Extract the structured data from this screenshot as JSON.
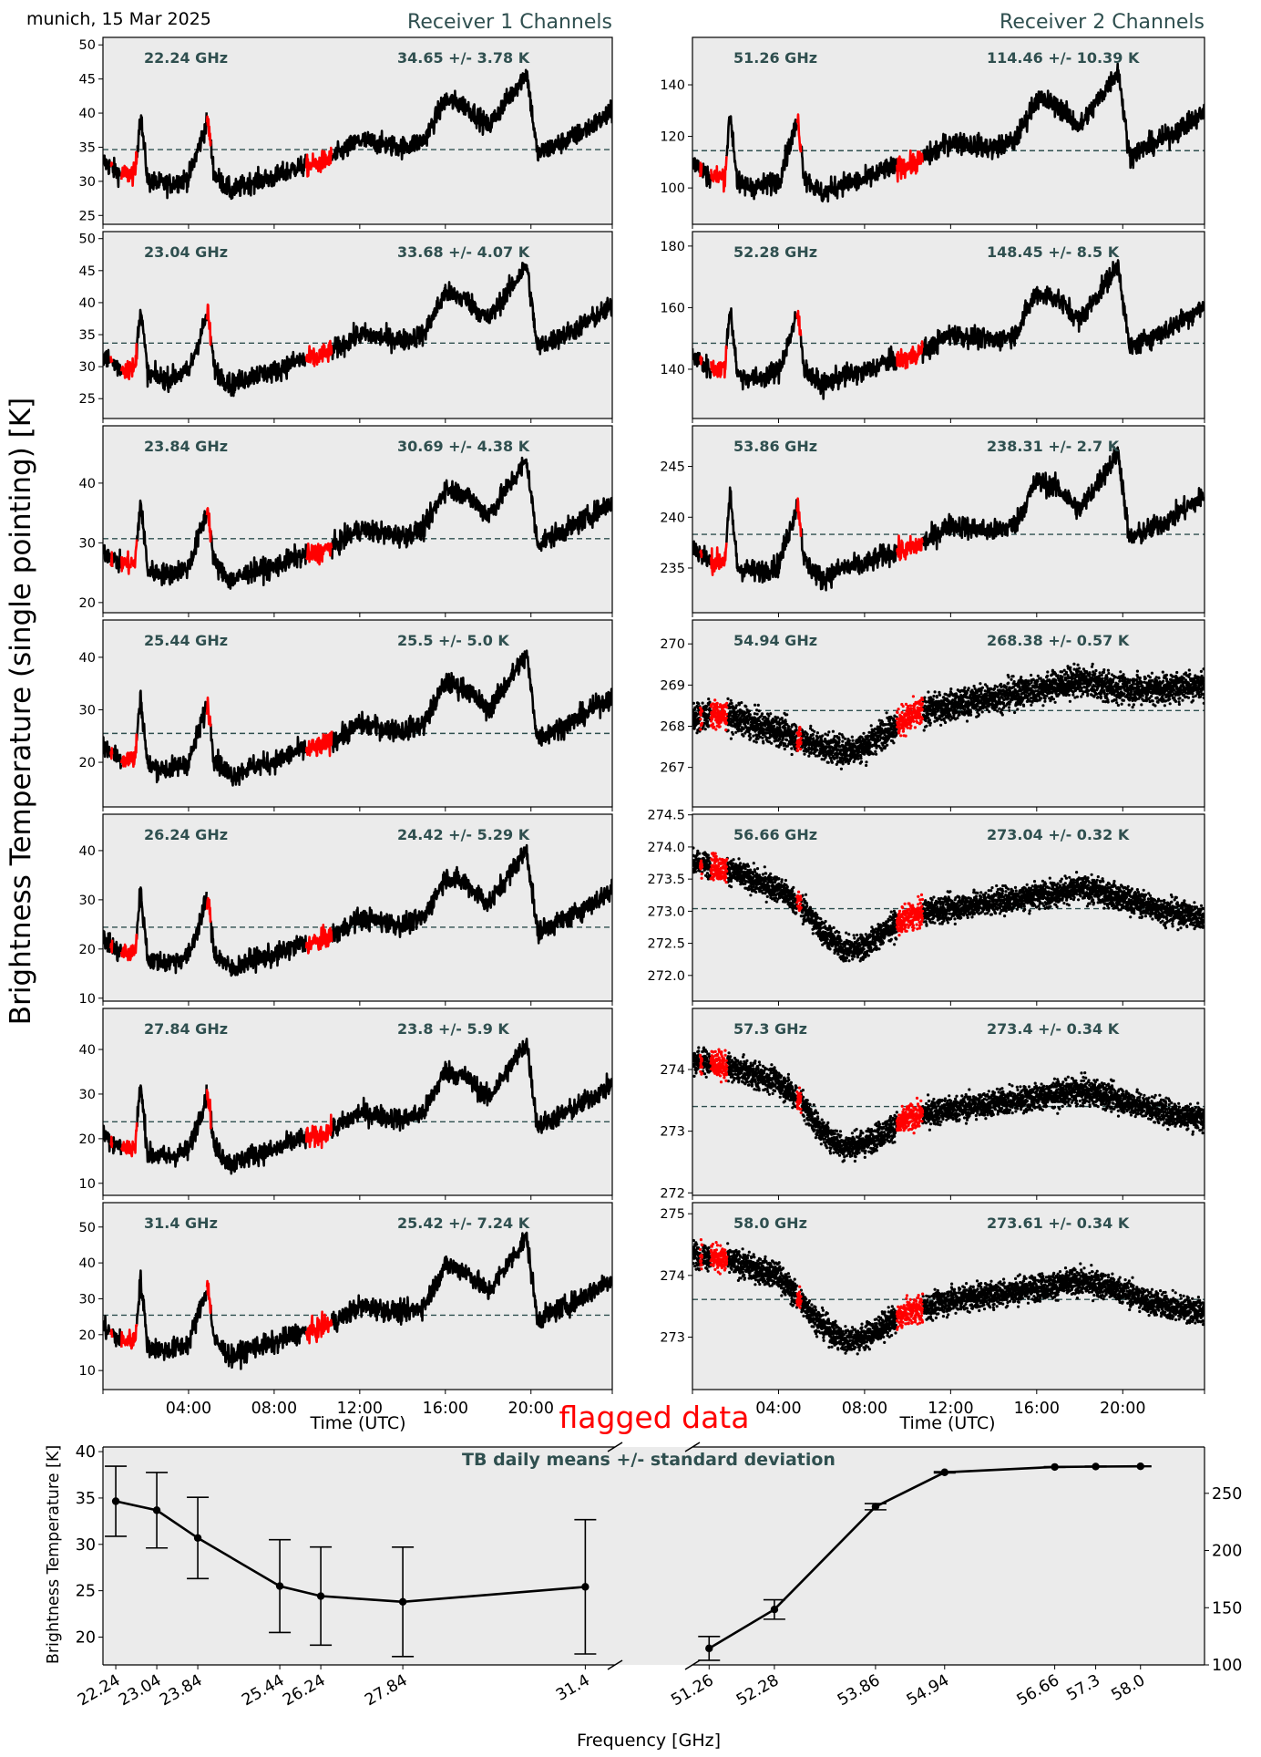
{
  "header": {
    "location_date": "munich, 15 Mar 2025",
    "receiver1_title": "Receiver 1 Channels",
    "receiver2_title": "Receiver 2 Channels",
    "ylabel": "Brightness Temperature (single pointing) [K]",
    "time_xlabel": "Time (UTC)",
    "flag_label": "flagged data"
  },
  "colors": {
    "panel_bg": "#ebebeb",
    "line": "#000000",
    "flagged": "#ff0000",
    "mean_line": "#2f4f4f",
    "label_text": "#2f4f4f"
  },
  "chart_data": [
    {
      "type": "line",
      "title": "Receiver 1 Channels",
      "xlabel": "Time (UTC)",
      "ylabel": "Brightness Temperature (single pointing) [K]",
      "x_unit": "hours UTC",
      "xlim": [
        0,
        23.8
      ],
      "x_ticks": [
        4,
        8,
        12,
        16,
        20
      ],
      "x_tick_labels": [
        "04:00",
        "08:00",
        "12:00",
        "16:00",
        "20:00"
      ],
      "flagged_intervals_hours": [
        [
          0.35,
          0.45
        ],
        [
          0.85,
          1.6
        ],
        [
          4.85,
          5.05
        ],
        [
          9.5,
          10.7
        ]
      ],
      "time_hours": [
        0,
        0.8,
        1.5,
        1.75,
        2.1,
        3,
        4,
        4.9,
        5.2,
        6,
        7,
        8,
        9,
        10,
        11,
        12,
        13,
        14,
        15,
        16,
        17,
        18,
        19.8,
        20.3,
        22,
        23.8
      ],
      "channels": [
        {
          "freq_label": "22.24 GHz",
          "stats_label": "34.65 +/- 3.78 K",
          "mean": 34.65,
          "std": 3.78,
          "ylim": [
            23.7,
            51.1
          ],
          "y_ticks": [
            25,
            30,
            35,
            40,
            45,
            50
          ],
          "values": [
            33,
            31,
            31,
            40,
            30,
            29.5,
            30.5,
            39,
            31,
            28.5,
            30,
            30.5,
            32,
            32.5,
            34,
            36,
            35.5,
            35,
            36,
            42,
            41,
            38,
            46,
            34,
            36.5,
            40
          ]
        },
        {
          "freq_label": "23.04 GHz",
          "stats_label": "33.68 +/- 4.07 K",
          "mean": 33.68,
          "std": 4.07,
          "ylim": [
            21.9,
            51.1
          ],
          "y_ticks": [
            25,
            30,
            35,
            40,
            45,
            50
          ],
          "values": [
            31.9,
            29.7,
            29.7,
            39.4,
            28.7,
            28.1,
            29.2,
            38.4,
            29.7,
            27.1,
            28.7,
            29.2,
            30.8,
            31.4,
            33.0,
            35.1,
            34.6,
            34.1,
            35.1,
            41.6,
            40.5,
            37.3,
            45.9,
            33.0,
            35.7,
            39.4
          ]
        },
        {
          "freq_label": "23.84 GHz",
          "stats_label": "30.69 +/- 4.38 K",
          "mean": 30.69,
          "std": 4.38,
          "ylim": [
            18.3,
            49.6
          ],
          "y_ticks": [
            20,
            30,
            40
          ],
          "values": [
            28.8,
            26.5,
            26.5,
            36.9,
            25.3,
            24.7,
            25.9,
            35.7,
            26.5,
            23.6,
            25.3,
            25.9,
            27.6,
            28.2,
            29.9,
            32.3,
            31.7,
            31.1,
            32.3,
            39.2,
            38.0,
            34.6,
            43.8,
            29.9,
            32.8,
            36.9
          ]
        },
        {
          "freq_label": "25.44 GHz",
          "stats_label": "25.5 +/- 5.0 K",
          "mean": 25.5,
          "std": 5.0,
          "ylim": [
            11.5,
            47.1
          ],
          "y_ticks": [
            20,
            30,
            40
          ],
          "values": [
            23.3,
            20.7,
            20.7,
            32.6,
            19.3,
            18.7,
            20.0,
            31.3,
            20.7,
            17.4,
            19.3,
            20.0,
            22.0,
            22.7,
            24.6,
            27.3,
            26.6,
            26.0,
            27.3,
            35.2,
            33.9,
            29.9,
            40.5,
            24.6,
            27.9,
            32.6
          ]
        },
        {
          "freq_label": "26.24 GHz",
          "stats_label": "24.42 +/- 5.29 K",
          "mean": 24.42,
          "std": 5.29,
          "ylim": [
            9.4,
            47.4
          ],
          "y_ticks": [
            10,
            20,
            30,
            40
          ],
          "values": [
            22.1,
            19.3,
            19.3,
            31.9,
            17.9,
            17.2,
            18.6,
            30.5,
            19.3,
            15.8,
            17.9,
            18.6,
            20.7,
            21.4,
            23.5,
            26.3,
            25.6,
            24.9,
            26.3,
            34.7,
            33.3,
            29.1,
            40.3,
            23.5,
            27.0,
            31.9
          ]
        },
        {
          "freq_label": "27.84 GHz",
          "stats_label": "23.8 +/- 5.9 K",
          "mean": 23.8,
          "std": 5.9,
          "ylim": [
            7.3,
            49.2
          ],
          "y_ticks": [
            10,
            20,
            30,
            40
          ],
          "values": [
            21.2,
            18.1,
            18.1,
            32.2,
            16.5,
            15.8,
            17.3,
            30.6,
            18.1,
            14.2,
            16.5,
            17.3,
            19.7,
            20.4,
            22.8,
            25.9,
            25.1,
            24.3,
            25.9,
            35.3,
            33.7,
            29.0,
            41.5,
            22.8,
            26.7,
            32.2
          ]
        },
        {
          "freq_label": "31.4 GHz",
          "stats_label": "25.42 +/- 7.24 K",
          "mean": 25.42,
          "std": 7.24,
          "ylim": [
            4.7,
            56.8
          ],
          "y_ticks": [
            10,
            20,
            30,
            40,
            50
          ],
          "values": [
            22.3,
            18.4,
            18.4,
            35.7,
            16.5,
            15.6,
            17.5,
            33.7,
            18.4,
            13.6,
            16.5,
            17.5,
            20.3,
            21.3,
            24.2,
            28.0,
            27.1,
            26.1,
            28.0,
            39.5,
            37.6,
            31.8,
            47.2,
            24.2,
            29.0,
            35.7
          ]
        }
      ]
    },
    {
      "type": "line",
      "title": "Receiver 2 Channels",
      "xlabel": "Time (UTC)",
      "x_unit": "hours UTC",
      "xlim": [
        0,
        23.8
      ],
      "x_ticks": [
        4,
        8,
        12,
        16,
        20
      ],
      "x_tick_labels": [
        "04:00",
        "08:00",
        "12:00",
        "16:00",
        "20:00"
      ],
      "flagged_intervals_hours": [
        [
          0.35,
          0.45
        ],
        [
          0.85,
          1.6
        ],
        [
          4.85,
          5.05
        ],
        [
          9.5,
          10.7
        ]
      ],
      "time_hours": [
        0,
        0.8,
        1.5,
        1.75,
        2.1,
        3,
        4,
        4.9,
        5.2,
        6,
        7,
        8,
        9,
        10,
        11,
        12,
        13,
        14,
        15,
        16,
        17,
        18,
        19.8,
        20.3,
        22,
        23.8
      ],
      "time_hours_scatter": [
        0,
        1,
        2,
        3,
        4,
        5,
        6,
        7,
        8,
        9,
        10,
        11,
        12,
        13,
        14,
        15,
        16,
        17,
        18,
        19,
        20,
        21,
        22,
        23,
        23.8
      ],
      "channels": [
        {
          "freq_label": "51.26 GHz",
          "stats_label": "114.46 +/- 10.39 K",
          "mean": 114.46,
          "std": 10.39,
          "ylim": [
            85.9,
            158.4
          ],
          "y_ticks": [
            100,
            120,
            140
          ],
          "style": "line",
          "values": [
            109.9,
            104.4,
            104.4,
            129.2,
            101.7,
            100.3,
            103.0,
            126.4,
            104.4,
            97.6,
            101.7,
            103.0,
            107.2,
            108.6,
            112.7,
            118.2,
            116.8,
            115.4,
            118.2,
            134.7,
            131.9,
            123.7,
            145.7,
            112.7,
            119.5,
            129.2
          ]
        },
        {
          "freq_label": "52.28 GHz",
          "stats_label": "148.45 +/- 8.5 K",
          "mean": 148.45,
          "std": 8.5,
          "ylim": [
            124.0,
            184.7
          ],
          "y_ticks": [
            140,
            160,
            180
          ],
          "style": "line",
          "values": [
            144.7,
            140.2,
            140.2,
            160.5,
            138.0,
            136.9,
            139.1,
            158.2,
            140.2,
            134.6,
            138.0,
            139.1,
            142.5,
            143.6,
            147.0,
            151.5,
            150.4,
            149.2,
            151.5,
            165.0,
            162.7,
            156.0,
            174.0,
            147.0,
            152.6,
            160.5
          ]
        },
        {
          "freq_label": "53.86 GHz",
          "stats_label": "238.31 +/- 2.7 K",
          "mean": 238.31,
          "std": 2.7,
          "ylim": [
            230.6,
            249.0
          ],
          "y_ticks": [
            235,
            240,
            245
          ],
          "style": "line",
          "values": [
            237.1,
            235.7,
            235.7,
            242.1,
            235.0,
            234.6,
            235.3,
            241.4,
            235.7,
            233.9,
            235.0,
            235.3,
            236.4,
            236.8,
            237.8,
            239.3,
            238.9,
            238.6,
            239.3,
            243.6,
            242.8,
            240.7,
            246.4,
            237.8,
            239.6,
            242.1
          ]
        },
        {
          "freq_label": "54.94 GHz",
          "stats_label": "268.38 +/- 0.57 K",
          "mean": 268.38,
          "std": 0.57,
          "ylim": [
            266.04,
            270.58
          ],
          "y_ticks": [
            267,
            268,
            269,
            270
          ],
          "style": "scatter",
          "values": [
            268.2,
            268.3,
            268.2,
            268.0,
            267.9,
            267.7,
            267.5,
            267.4,
            267.5,
            267.9,
            268.2,
            268.4,
            268.5,
            268.6,
            268.7,
            268.8,
            268.9,
            269.0,
            269.1,
            269.0,
            268.9,
            268.9,
            268.9,
            269.0,
            269.0
          ]
        },
        {
          "freq_label": "56.66 GHz",
          "stats_label": "273.04 +/- 0.32 K",
          "mean": 273.04,
          "std": 0.32,
          "ylim": [
            271.6,
            274.51
          ],
          "y_ticks": [
            272.0,
            272.5,
            273.0,
            273.5,
            274.0,
            274.5
          ],
          "y_tick_labels": [
            "272.0",
            "272.5",
            "273.0",
            "273.5",
            "274.0",
            "274.5"
          ],
          "style": "scatter",
          "values": [
            273.75,
            273.7,
            273.6,
            273.45,
            273.35,
            273.1,
            272.7,
            272.4,
            272.45,
            272.7,
            272.9,
            273.0,
            273.05,
            273.1,
            273.15,
            273.2,
            273.25,
            273.3,
            273.35,
            273.3,
            273.2,
            273.1,
            273.0,
            272.95,
            272.9
          ]
        },
        {
          "freq_label": "57.3 GHz",
          "stats_label": "273.4 +/- 0.34 K",
          "mean": 273.4,
          "std": 0.34,
          "ylim": [
            271.96,
            274.99
          ],
          "y_ticks": [
            272,
            273,
            274
          ],
          "style": "scatter",
          "values": [
            274.15,
            274.1,
            274.0,
            273.9,
            273.8,
            273.5,
            273.0,
            272.75,
            272.8,
            273.0,
            273.2,
            273.3,
            273.35,
            273.4,
            273.45,
            273.5,
            273.55,
            273.6,
            273.65,
            273.6,
            273.5,
            273.4,
            273.3,
            273.25,
            273.2
          ]
        },
        {
          "freq_label": "58.0 GHz",
          "stats_label": "273.61 +/- 0.34 K",
          "mean": 273.61,
          "std": 0.34,
          "ylim": [
            272.15,
            275.18
          ],
          "y_ticks": [
            273,
            274,
            275
          ],
          "style": "scatter",
          "values": [
            274.35,
            274.3,
            274.2,
            274.1,
            274.0,
            273.6,
            273.2,
            272.95,
            273.0,
            273.2,
            273.4,
            273.5,
            273.6,
            273.65,
            273.7,
            273.75,
            273.8,
            273.85,
            273.9,
            273.85,
            273.75,
            273.6,
            273.5,
            273.45,
            273.4
          ]
        }
      ]
    },
    {
      "type": "line",
      "title": "TB daily means +/- standard deviation",
      "xlabel": "Frequency [GHz]",
      "ylabel": "Brightness Temperature [K]",
      "broken_x_axis": true,
      "left": {
        "x": [
          22.24,
          23.04,
          23.84,
          25.44,
          26.24,
          27.84,
          31.4
        ],
        "x_tick_labels": [
          "22.24",
          "23.04",
          "23.84",
          "25.44",
          "26.24",
          "27.84",
          "31.4"
        ],
        "y": [
          34.65,
          33.68,
          30.69,
          25.5,
          24.42,
          23.8,
          25.42
        ],
        "yerr": [
          3.78,
          4.07,
          4.38,
          5.0,
          5.29,
          5.9,
          7.24
        ],
        "xlim": [
          21.99,
          31.98
        ],
        "ylim": [
          17.0,
          40.5
        ],
        "y_ticks": [
          20,
          25,
          30,
          35,
          40
        ],
        "y_axis_side": "left"
      },
      "right": {
        "x": [
          51.26,
          52.28,
          53.86,
          54.94,
          56.66,
          57.3,
          58.0
        ],
        "x_tick_labels": [
          "51.26",
          "52.28",
          "53.86",
          "54.94",
          "56.66",
          "57.3",
          "58.0"
        ],
        "y": [
          114.46,
          148.45,
          238.31,
          268.38,
          273.04,
          273.4,
          273.61
        ],
        "yerr": [
          10.39,
          8.5,
          2.7,
          0.57,
          0.32,
          0.34,
          0.34
        ],
        "xlim": [
          51.0,
          59.0
        ],
        "ylim": [
          100,
          290.5
        ],
        "y_ticks": [
          100,
          150,
          200,
          250
        ],
        "y_axis_side": "right"
      }
    }
  ]
}
